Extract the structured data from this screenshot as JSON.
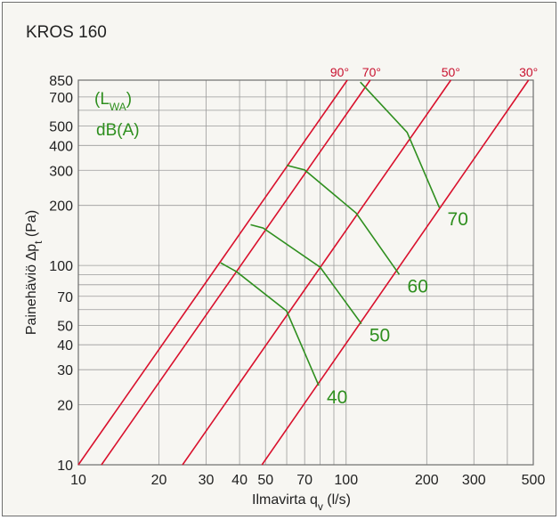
{
  "title": "KROS 160",
  "chart_data": {
    "type": "line",
    "x_scale": "log",
    "y_scale": "log",
    "xlim": [
      10,
      500
    ],
    "ylim": [
      10,
      850
    ],
    "x_grid": [
      10,
      20,
      30,
      40,
      50,
      60,
      70,
      80,
      90,
      100,
      200,
      300,
      400,
      500
    ],
    "y_grid": [
      10,
      20,
      30,
      40,
      50,
      60,
      70,
      80,
      90,
      100,
      200,
      300,
      400,
      500,
      600,
      700,
      850
    ],
    "x_ticks": [
      10,
      20,
      30,
      40,
      50,
      70,
      100,
      200,
      300,
      500
    ],
    "y_ticks": [
      10,
      20,
      30,
      40,
      50,
      70,
      100,
      200,
      300,
      400,
      500,
      700,
      850
    ],
    "xlabel_main": "Ilmavirta q",
    "xlabel_sub": "v",
    "xlabel_unit": " (l/s)",
    "ylabel_main": "Painehäviö ∆p",
    "ylabel_sub": "t",
    "ylabel_unit": " (Pa)",
    "legend_line1_main": "(L",
    "legend_line1_sub": "WA",
    "legend_line1_end": ")",
    "legend_line2": "dB(A)",
    "colors": {
      "damper": "#d9102c",
      "sound": "#2f8f1f",
      "grid": "#9a9a9a",
      "frame": "#6e6e6e"
    },
    "damper_series": [
      {
        "name": "90°",
        "points": [
          [
            10,
            10
          ],
          [
            101,
            850
          ]
        ]
      },
      {
        "name": "70°",
        "points": [
          [
            12.2,
            10
          ],
          [
            123,
            850
          ]
        ]
      },
      {
        "name": "50°",
        "points": [
          [
            24.5,
            10
          ],
          [
            246,
            850
          ]
        ]
      },
      {
        "name": "30°",
        "points": [
          [
            48.5,
            10
          ],
          [
            480,
            850
          ]
        ]
      }
    ],
    "sound_series": [
      {
        "name": "40",
        "points": [
          [
            34,
            103
          ],
          [
            39,
            93
          ],
          [
            60,
            59
          ],
          [
            79,
            25
          ]
        ]
      },
      {
        "name": "50",
        "points": [
          [
            44,
            160
          ],
          [
            49,
            154
          ],
          [
            80,
            98
          ],
          [
            114,
            51
          ]
        ]
      },
      {
        "name": "60",
        "points": [
          [
            60,
            318
          ],
          [
            70,
            301
          ],
          [
            109,
            183
          ],
          [
            158,
            90
          ]
        ]
      },
      {
        "name": "70",
        "points": [
          [
            113,
            831
          ],
          [
            169,
            465
          ],
          [
            223,
            195
          ]
        ]
      }
    ]
  }
}
